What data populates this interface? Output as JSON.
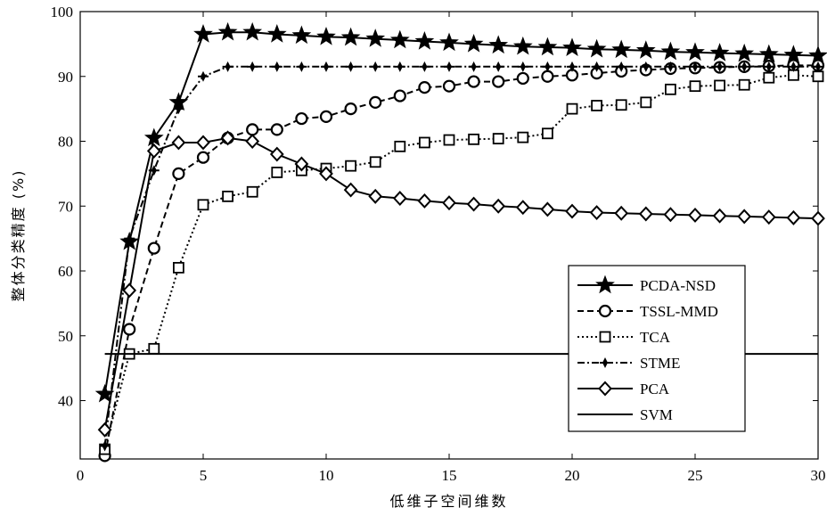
{
  "chart_data": {
    "type": "line",
    "xlabel": "低维子空间维数",
    "ylabel": "整体分类精度 (%)",
    "xlim": [
      0,
      30
    ],
    "ylim": [
      31,
      100
    ],
    "xticks": [
      0,
      5,
      10,
      15,
      20,
      25,
      30
    ],
    "yticks": [
      40,
      50,
      60,
      70,
      80,
      90,
      100
    ],
    "grid": false,
    "legend_position": "bottom-right",
    "x": [
      1,
      2,
      3,
      4,
      5,
      6,
      7,
      8,
      9,
      10,
      11,
      12,
      13,
      14,
      15,
      16,
      17,
      18,
      19,
      20,
      21,
      22,
      23,
      24,
      25,
      26,
      27,
      28,
      29,
      30
    ],
    "series": [
      {
        "name": "PCDA-NSD",
        "marker": "star",
        "dash": "solid",
        "values": [
          41,
          64.5,
          80.5,
          86,
          96.5,
          96.8,
          96.8,
          96.5,
          96.3,
          96.1,
          96,
          95.8,
          95.6,
          95.4,
          95.2,
          95,
          94.8,
          94.6,
          94.5,
          94.4,
          94.2,
          94.1,
          94,
          93.8,
          93.7,
          93.6,
          93.5,
          93.4,
          93.3,
          93.2
        ]
      },
      {
        "name": "TSSL-MMD",
        "marker": "circle",
        "dash": "dashed",
        "values": [
          31.5,
          51,
          63.5,
          75,
          77.5,
          80.5,
          81.8,
          81.8,
          83.5,
          83.8,
          85,
          86,
          87,
          88.3,
          88.5,
          89.2,
          89.2,
          89.7,
          90,
          90.2,
          90.5,
          90.8,
          91,
          91.2,
          91.3,
          91.4,
          91.5,
          91.6,
          91.7,
          91.7
        ]
      },
      {
        "name": "TCA",
        "marker": "square",
        "dash": "dotted",
        "values": [
          32.5,
          47.2,
          48,
          60.5,
          70.2,
          71.5,
          72.2,
          75.2,
          75.5,
          75.8,
          76.2,
          76.8,
          79.2,
          79.8,
          80.2,
          80.3,
          80.4,
          80.6,
          81.2,
          85,
          85.5,
          85.6,
          86,
          88,
          88.5,
          88.6,
          88.7,
          89.8,
          90.2,
          90
        ]
      },
      {
        "name": "STME",
        "marker": "plus",
        "dash": "dashdot",
        "values": [
          33,
          65,
          75.5,
          85,
          90,
          91.5,
          91.5,
          91.5,
          91.5,
          91.5,
          91.5,
          91.5,
          91.5,
          91.5,
          91.5,
          91.5,
          91.5,
          91.5,
          91.5,
          91.5,
          91.5,
          91.5,
          91.5,
          91.5,
          91.5,
          91.5,
          91.5,
          91.5,
          91.5,
          91.5
        ]
      },
      {
        "name": "PCA",
        "marker": "diamond",
        "dash": "solid",
        "values": [
          35.5,
          57,
          78.5,
          79.8,
          79.8,
          80.5,
          80,
          78,
          76.5,
          75,
          72.5,
          71.5,
          71.2,
          70.8,
          70.5,
          70.3,
          70,
          69.8,
          69.5,
          69.2,
          69,
          68.9,
          68.8,
          68.7,
          68.6,
          68.5,
          68.4,
          68.3,
          68.2,
          68.1
        ]
      },
      {
        "name": "SVM",
        "marker": "none",
        "dash": "solid",
        "values": [
          47.2,
          47.2,
          47.2,
          47.2,
          47.2,
          47.2,
          47.2,
          47.2,
          47.2,
          47.2,
          47.2,
          47.2,
          47.2,
          47.2,
          47.2,
          47.2,
          47.2,
          47.2,
          47.2,
          47.2,
          47.2,
          47.2,
          47.2,
          47.2,
          47.2,
          47.2,
          47.2,
          47.2,
          47.2,
          47.2
        ]
      }
    ]
  }
}
